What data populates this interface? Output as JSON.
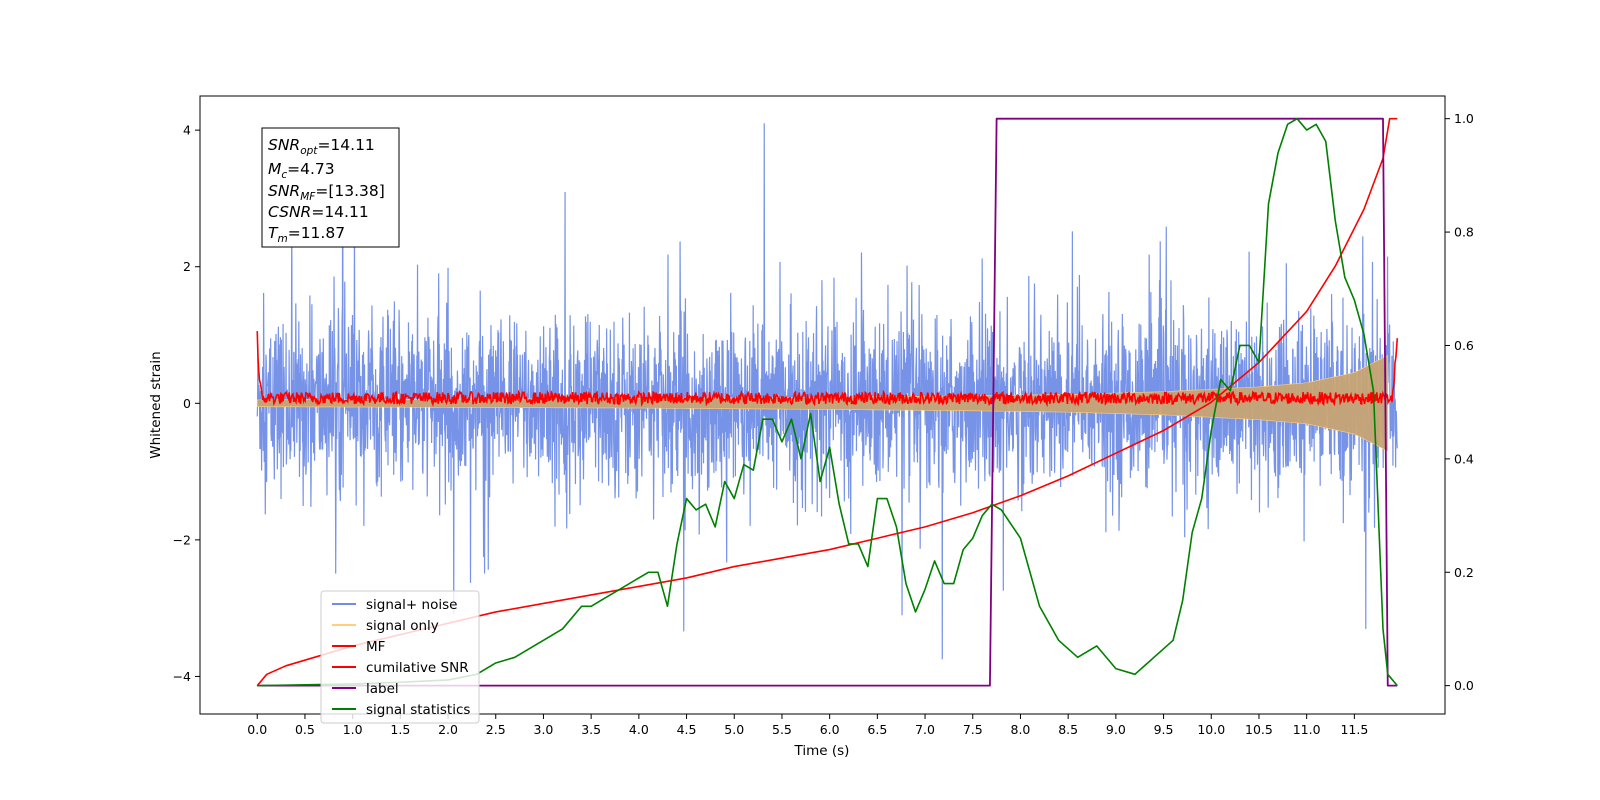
{
  "chart_data": {
    "type": "line",
    "xlabel": "Time (s)",
    "ylabel": "Whitened strain",
    "ylabel_right": "",
    "xlim": [
      -0.6,
      12.45
    ],
    "ylim": [
      -4.55,
      4.5
    ],
    "ylim_right": [
      -0.05,
      1.04
    ],
    "x_ticks": [
      "0.0",
      "0.5",
      "1.0",
      "1.5",
      "2.0",
      "2.5",
      "3.0",
      "3.5",
      "4.0",
      "4.5",
      "5.0",
      "5.5",
      "6.0",
      "6.5",
      "7.0",
      "7.5",
      "8.0",
      "8.5",
      "9.0",
      "9.5",
      "10.0",
      "10.5",
      "11.0",
      "11.5"
    ],
    "y_ticks_left": [
      "-4",
      "-2",
      "0",
      "2",
      "4"
    ],
    "y_ticks_right": [
      "0.0",
      "0.2",
      "0.4",
      "0.6",
      "0.8",
      "1.0"
    ],
    "legend_location": "lower-left",
    "legend": [
      {
        "label": "signal+ noise",
        "color": "#6f8de6"
      },
      {
        "label": "signal only",
        "color": "#ffcf7f"
      },
      {
        "label": "MF",
        "color": "#ff0000"
      },
      {
        "label": "cumilative SNR",
        "color": "#ff0000"
      },
      {
        "label": "label",
        "color": "#800080"
      },
      {
        "label": "signal statistics",
        "color": "#008000"
      }
    ],
    "annotation": {
      "snr_opt_base": "SNR",
      "snr_opt_sub": "opt",
      "snr_opt_value": "=14.11",
      "mc_base": "M",
      "mc_sub": "c",
      "mc_value": "=4.73",
      "snr_mf_base": "SNR",
      "snr_mf_sub": "MF",
      "snr_mf_value": "=[13.38]",
      "csnr_base": "CSNR",
      "csnr_value": "=14.11",
      "tm_base": "T",
      "tm_sub": "m",
      "tm_value": "=11.87"
    },
    "series": [
      {
        "name": "signal+ noise",
        "axis": "left",
        "style": "noise",
        "x_range": [
          0.0,
          11.95
        ],
        "typical_range": [
          -1.6,
          1.6
        ],
        "peak_range": [
          -4.1,
          4.1
        ]
      },
      {
        "name": "signal only",
        "axis": "left",
        "style": "chirp-envelope",
        "x": [
          0.0,
          2.0,
          4.0,
          6.0,
          7.5,
          8.5,
          9.5,
          10.5,
          11.0,
          11.5,
          11.85
        ],
        "amplitude": [
          0.05,
          0.06,
          0.07,
          0.09,
          0.11,
          0.13,
          0.17,
          0.24,
          0.3,
          0.45,
          0.7
        ]
      },
      {
        "name": "MF",
        "axis": "left",
        "style": "mf",
        "x": [
          0.0,
          0.02,
          0.05,
          11.9,
          11.95
        ],
        "y": [
          1.0,
          0.3,
          0.05,
          0.05,
          0.9
        ]
      },
      {
        "name": "cumilative SNR",
        "axis": "right",
        "x": [
          0.0,
          0.1,
          0.3,
          0.6,
          1.0,
          1.5,
          2.0,
          2.5,
          3.0,
          3.5,
          4.0,
          4.5,
          5.0,
          5.5,
          6.0,
          6.5,
          7.0,
          7.5,
          8.0,
          8.5,
          9.0,
          9.5,
          10.0,
          10.5,
          11.0,
          11.3,
          11.6,
          11.8,
          11.87,
          11.95
        ],
        "y": [
          0.0,
          0.02,
          0.035,
          0.05,
          0.07,
          0.09,
          0.11,
          0.13,
          0.145,
          0.16,
          0.175,
          0.19,
          0.21,
          0.225,
          0.24,
          0.26,
          0.28,
          0.305,
          0.335,
          0.37,
          0.41,
          0.45,
          0.5,
          0.57,
          0.66,
          0.74,
          0.84,
          0.93,
          1.0,
          1.0
        ]
      },
      {
        "name": "label",
        "axis": "right",
        "x": [
          0.0,
          7.68,
          7.75,
          11.8,
          11.85,
          11.95
        ],
        "y": [
          0.0,
          0.0,
          1.0,
          1.0,
          0.0,
          0.0
        ]
      },
      {
        "name": "signal statistics",
        "axis": "right",
        "x": [
          0.0,
          1.0,
          1.5,
          2.0,
          2.3,
          2.5,
          2.7,
          2.9,
          3.0,
          3.2,
          3.4,
          3.5,
          3.6,
          3.8,
          4.0,
          4.1,
          4.2,
          4.3,
          4.4,
          4.5,
          4.6,
          4.7,
          4.8,
          4.9,
          5.0,
          5.1,
          5.2,
          5.3,
          5.4,
          5.5,
          5.6,
          5.7,
          5.8,
          5.9,
          6.0,
          6.1,
          6.2,
          6.3,
          6.4,
          6.5,
          6.6,
          6.7,
          6.8,
          6.9,
          7.0,
          7.1,
          7.2,
          7.3,
          7.4,
          7.5,
          7.6,
          7.7,
          7.8,
          8.0,
          8.2,
          8.4,
          8.6,
          8.8,
          9.0,
          9.2,
          9.4,
          9.6,
          9.7,
          9.8,
          9.9,
          10.0,
          10.1,
          10.2,
          10.3,
          10.4,
          10.5,
          10.6,
          10.7,
          10.8,
          10.9,
          11.0,
          11.1,
          11.2,
          11.3,
          11.4,
          11.5,
          11.6,
          11.7,
          11.8,
          11.85,
          11.95
        ],
        "y": [
          0.0,
          0.003,
          0.006,
          0.01,
          0.02,
          0.04,
          0.05,
          0.07,
          0.08,
          0.1,
          0.14,
          0.14,
          0.15,
          0.17,
          0.19,
          0.2,
          0.2,
          0.14,
          0.25,
          0.33,
          0.31,
          0.32,
          0.28,
          0.36,
          0.33,
          0.39,
          0.38,
          0.47,
          0.47,
          0.43,
          0.47,
          0.4,
          0.48,
          0.36,
          0.42,
          0.32,
          0.25,
          0.25,
          0.21,
          0.33,
          0.33,
          0.28,
          0.18,
          0.13,
          0.17,
          0.22,
          0.18,
          0.18,
          0.24,
          0.26,
          0.3,
          0.32,
          0.31,
          0.26,
          0.14,
          0.08,
          0.05,
          0.07,
          0.03,
          0.02,
          0.05,
          0.08,
          0.15,
          0.27,
          0.33,
          0.45,
          0.54,
          0.52,
          0.6,
          0.6,
          0.57,
          0.85,
          0.94,
          0.99,
          1.0,
          0.98,
          0.99,
          0.96,
          0.82,
          0.72,
          0.68,
          0.62,
          0.52,
          0.1,
          0.02,
          0.0
        ]
      }
    ]
  }
}
